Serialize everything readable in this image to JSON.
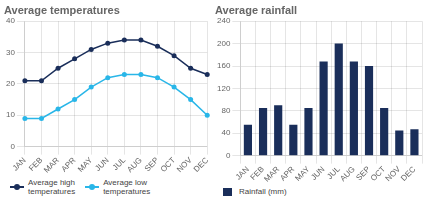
{
  "chart_data": [
    {
      "type": "line",
      "title": "Average temperatures",
      "categories": [
        "JAN",
        "FEB",
        "MAR",
        "APR",
        "MAY",
        "JUN",
        "JUL",
        "AUG",
        "SEP",
        "OCT",
        "NOV",
        "DEC"
      ],
      "series": [
        {
          "name": "Average high\ntemperatures",
          "color": "#1a2e5a",
          "marker": "circle",
          "values": [
            21,
            21,
            25,
            28,
            31,
            33,
            34,
            34,
            32,
            29,
            25,
            23
          ]
        },
        {
          "name": "Average low\ntemperatures",
          "color": "#29b6e8",
          "marker": "circle",
          "values": [
            9,
            9,
            12,
            15,
            19,
            22,
            23,
            23,
            22,
            19,
            15,
            10
          ]
        }
      ],
      "ylim": [
        0,
        40
      ],
      "yticks": [
        0,
        10,
        20,
        30,
        40
      ],
      "grid": true,
      "legend": "bottom"
    },
    {
      "type": "bar",
      "title": "Average rainfall",
      "categories": [
        "JAN",
        "FEB",
        "MAR",
        "APR",
        "MAY",
        "JUN",
        "JUL",
        "AUG",
        "SEP",
        "OCT",
        "NOV",
        "DEC"
      ],
      "series": [
        {
          "name": "Rainfall (mm)",
          "color": "#1a2e5a",
          "values": [
            55,
            85,
            90,
            55,
            85,
            168,
            200,
            168,
            160,
            85,
            45,
            47
          ]
        }
      ],
      "ylim": [
        0,
        240
      ],
      "yticks": [
        0,
        40,
        80,
        120,
        160,
        200,
        240
      ],
      "grid": true,
      "legend": "bottom"
    }
  ]
}
